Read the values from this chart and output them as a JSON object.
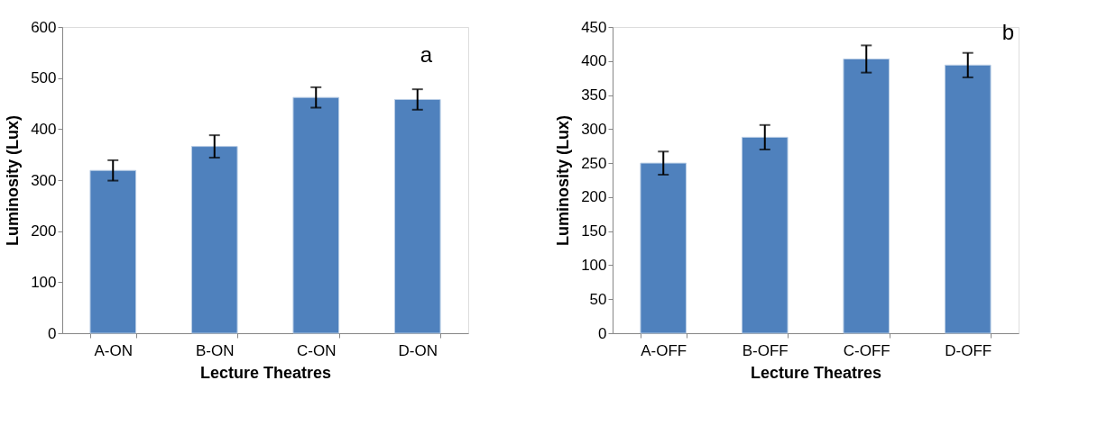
{
  "chart_data": [
    {
      "type": "bar",
      "xlabel": "Lecture Theatres",
      "ylabel": "Luminosity (Lux)",
      "categories": [
        "A-ON",
        "B-ON",
        "C-ON",
        "D-ON"
      ],
      "values": [
        319,
        366,
        462,
        458
      ],
      "errors": [
        20,
        22,
        20,
        20
      ],
      "color": "#4f81bd",
      "ylim": [
        0,
        600
      ],
      "yticks": [
        0,
        100,
        200,
        300,
        400,
        500,
        600
      ],
      "grid": false,
      "annotations": [
        "a"
      ]
    },
    {
      "type": "bar",
      "xlabel": "Lecture Theatres",
      "ylabel": "Luminosity (Lux)",
      "categories": [
        "A-OFF",
        "B-OFF",
        "C-OFF",
        "D-OFF"
      ],
      "values": [
        250,
        288,
        403,
        394
      ],
      "errors": [
        17,
        18,
        20,
        18
      ],
      "color": "#4f81bd",
      "ylim": [
        0,
        450
      ],
      "yticks": [
        0,
        50,
        100,
        150,
        200,
        250,
        300,
        350,
        400,
        450
      ],
      "grid": false,
      "annotations": [
        "b"
      ]
    }
  ]
}
